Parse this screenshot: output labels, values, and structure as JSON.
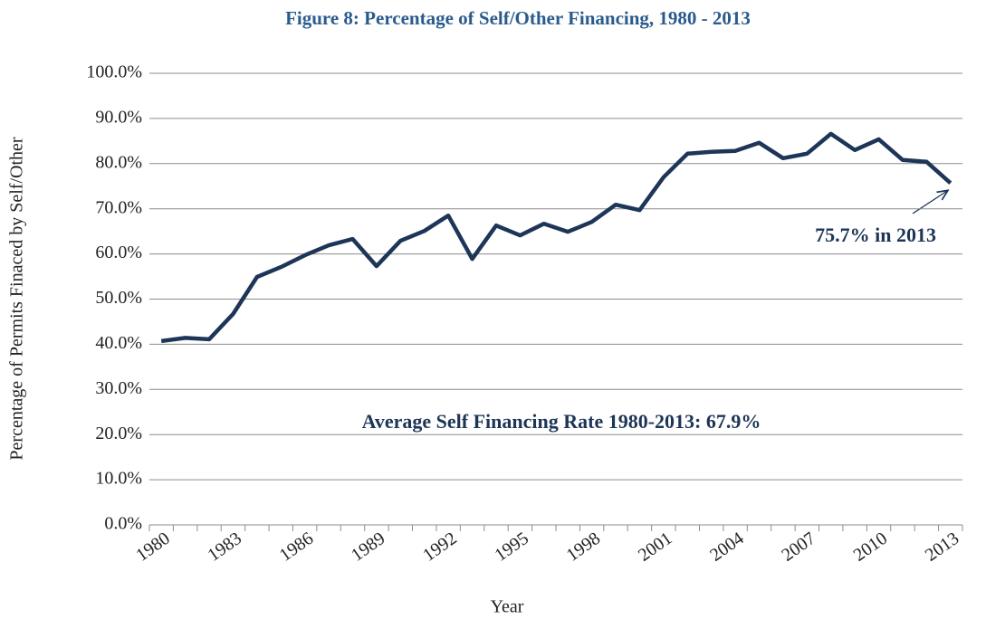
{
  "chart_data": {
    "type": "line",
    "title": "Figure 8: Percentage of Self/Other Financing, 1980 - 2013",
    "x_label": "Year",
    "y_label": "Percentage of Permits Finaced by Self/Other",
    "annotations": [
      "75.7% in 2013",
      "Average Self Financing Rate 1980-2013: 67.9%"
    ],
    "categories": [
      "1980",
      null,
      null,
      "1983",
      null,
      null,
      "1986",
      null,
      null,
      "1989",
      null,
      null,
      "1992",
      null,
      null,
      "1995",
      null,
      null,
      "1998",
      null,
      null,
      "2001",
      null,
      null,
      "2004",
      null,
      null,
      "2007",
      null,
      null,
      "2010",
      null,
      null,
      "2013"
    ],
    "series": [
      {
        "color": "#1d3557",
        "values": [
          40.7,
          41.4,
          41.1,
          46.7,
          54.9,
          57.1,
          59.7,
          61.9,
          63.3,
          57.3,
          62.9,
          65.1,
          68.5,
          58.9,
          66.3,
          64.1,
          66.7,
          64.9,
          67.1,
          70.9,
          69.7,
          77.0,
          82.2,
          82.6,
          82.8,
          84.6,
          81.2,
          82.2,
          86.6,
          83.0,
          85.4,
          80.8,
          80.4,
          75.7
        ]
      }
    ],
    "ylim": [
      0,
      100
    ],
    "yticks": [
      {
        "value": 0,
        "label": "0.0%"
      },
      {
        "value": 10,
        "label": "10.0%"
      },
      {
        "value": 20,
        "label": "20.0%"
      },
      {
        "value": 30,
        "label": "30.0%"
      },
      {
        "value": 40,
        "label": "40.0%"
      },
      {
        "value": 50,
        "label": "50.0%"
      },
      {
        "value": 60,
        "label": "60.0%"
      },
      {
        "value": 70,
        "label": "70.0%"
      },
      {
        "value": 80,
        "label": "80.0%"
      },
      {
        "value": 90,
        "label": "90.0%"
      },
      {
        "value": 100,
        "label": "100.0%"
      }
    ],
    "grid": true
  }
}
